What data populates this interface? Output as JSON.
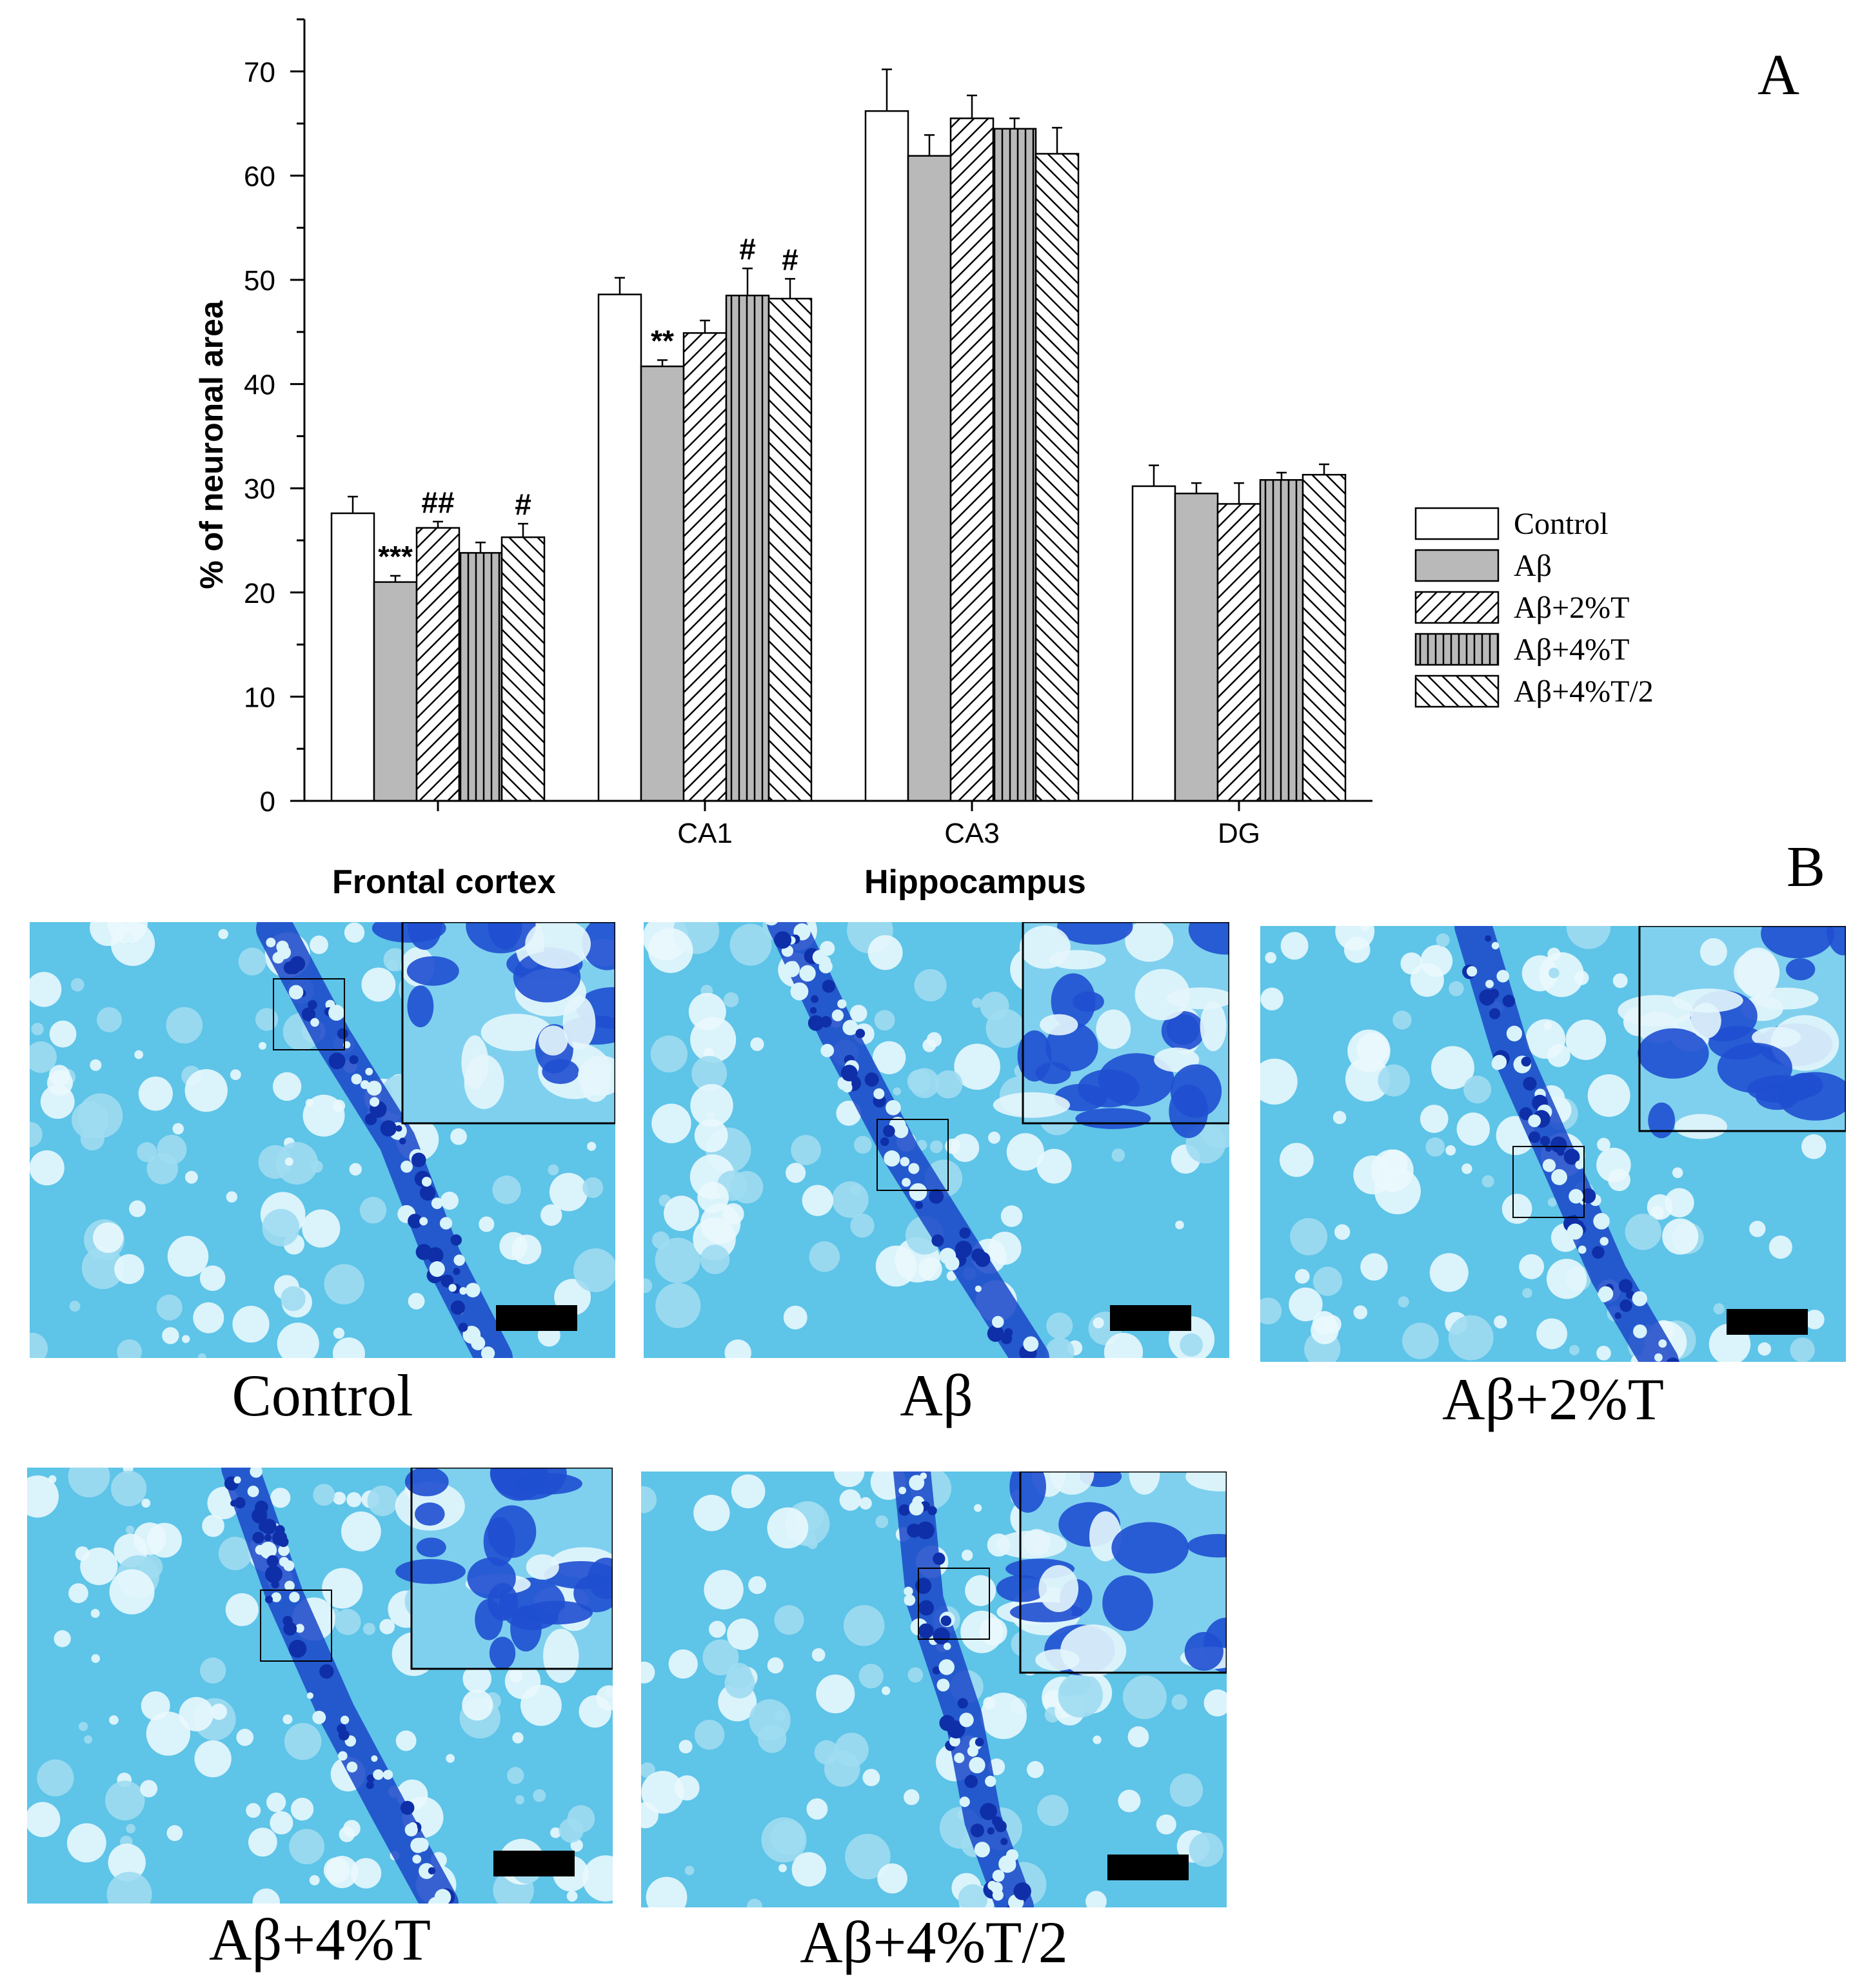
{
  "panel_labels": {
    "a": "A",
    "b": "B"
  },
  "chart_data": {
    "type": "bar",
    "title": "",
    "xlabel": "",
    "ylabel": "% of neuronal area",
    "ylim": [
      0,
      75
    ],
    "yticks": [
      0,
      10,
      20,
      30,
      40,
      50,
      60,
      70
    ],
    "categories": [
      "",
      "CA1",
      "CA3",
      "DG"
    ],
    "series": [
      {
        "name": "Control",
        "pattern": "open",
        "values": [
          27.6,
          48.6,
          66.2,
          30.2
        ],
        "errors": [
          1.6,
          1.6,
          4.0,
          2.0
        ],
        "annotations": [
          "",
          "",
          "",
          ""
        ]
      },
      {
        "name": "Aβ",
        "pattern": "gray",
        "values": [
          21.0,
          41.7,
          61.9,
          29.5
        ],
        "errors": [
          0.6,
          0.6,
          2.0,
          1.0
        ],
        "annotations": [
          "***",
          "**",
          "",
          ""
        ]
      },
      {
        "name": "Aβ+2%T",
        "pattern": "diag-right",
        "values": [
          26.2,
          44.9,
          65.5,
          28.5
        ],
        "errors": [
          0.6,
          1.2,
          2.2,
          2.0
        ],
        "annotations": [
          "##",
          "",
          "",
          ""
        ]
      },
      {
        "name": "Aβ+4%T",
        "pattern": "vertical",
        "values": [
          23.8,
          48.5,
          64.5,
          30.8
        ],
        "errors": [
          1.0,
          2.6,
          1.0,
          0.7
        ],
        "annotations": [
          "",
          "#",
          "",
          ""
        ]
      },
      {
        "name": "Aβ+4%T/2",
        "pattern": "diag-left",
        "values": [
          25.3,
          48.2,
          62.1,
          31.3
        ],
        "errors": [
          1.3,
          1.9,
          2.5,
          1.0
        ],
        "annotations": [
          "#",
          "#",
          "",
          ""
        ]
      }
    ],
    "legend_position": "right"
  },
  "region_labels": {
    "left": "Frontal cortex",
    "right": "Hippocampus"
  },
  "micrographs": [
    {
      "caption": "Control"
    },
    {
      "caption": "Aβ"
    },
    {
      "caption": "Aβ+2%T"
    },
    {
      "caption": "Aβ+4%T"
    },
    {
      "caption": "Aβ+4%T/2"
    }
  ]
}
